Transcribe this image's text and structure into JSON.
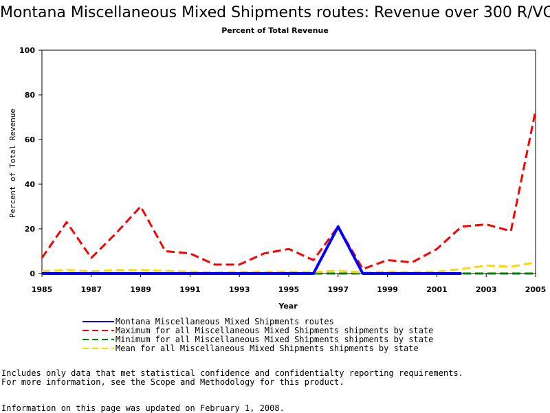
{
  "chart_data": {
    "type": "line",
    "title": "Montana Miscellaneous Mixed Shipments routes: Revenue over 300 R/VC",
    "subtitle": "Percent of Total Revenue",
    "xlabel": "Year",
    "ylabel": "Percent of Total Revenue",
    "xlim": [
      1985,
      2005
    ],
    "ylim": [
      0,
      100
    ],
    "x_ticks": [
      "1985",
      "1987",
      "1989",
      "1991",
      "1993",
      "1995",
      "1997",
      "1999",
      "2001",
      "2003",
      "2005"
    ],
    "y_ticks": [
      "0",
      "20",
      "40",
      "60",
      "80",
      "100"
    ],
    "grid": false,
    "legend_placement": "bottom",
    "series": [
      {
        "name": "Montana Miscellaneous Mixed Shipments routes",
        "color": "#0000ff",
        "style": "solid",
        "x": [
          1985,
          1986,
          1987,
          1988,
          1989,
          1990,
          1991,
          1992,
          1993,
          1994,
          1995,
          1996,
          1997,
          1998,
          1999,
          2000,
          2001,
          2002
        ],
        "y": [
          0,
          0,
          0,
          0,
          0,
          0,
          0,
          0,
          0,
          0,
          0,
          0,
          21,
          0,
          0,
          0,
          0,
          0
        ]
      },
      {
        "name": "Maximum for all Miscellaneous Mixed Shipments shipments by state",
        "color": "#ff0000",
        "style": "dashed",
        "x": [
          1985,
          1986,
          1987,
          1988,
          1989,
          1990,
          1991,
          1992,
          1993,
          1994,
          1995,
          1996,
          1997,
          1998,
          1999,
          2000,
          2001,
          2002,
          2003,
          2004,
          2005
        ],
        "y": [
          7,
          23,
          7,
          18,
          30,
          10,
          9,
          4,
          4,
          9,
          11,
          6,
          21,
          2,
          6,
          5,
          11,
          21,
          22,
          19,
          73
        ]
      },
      {
        "name": "Minimum for all Miscellaneous Mixed Shipments shipments by state",
        "color": "#008000",
        "style": "dashed",
        "x": [
          1985,
          1986,
          1987,
          1988,
          1989,
          1990,
          1991,
          1992,
          1993,
          1994,
          1995,
          1996,
          1997,
          1998,
          1999,
          2000,
          2001,
          2002,
          2003,
          2004,
          2005
        ],
        "y": [
          0,
          0,
          0,
          0,
          0,
          0,
          0,
          0,
          0,
          0,
          0,
          0,
          0,
          0,
          0,
          0,
          0,
          0,
          0,
          0,
          0
        ]
      },
      {
        "name": "Mean for all Miscellaneous Mixed Shipments shipments by state",
        "color": "#ffd700",
        "style": "dashed",
        "x": [
          1985,
          1986,
          1987,
          1988,
          1989,
          1990,
          1991,
          1992,
          1993,
          1994,
          1995,
          1996,
          1997,
          1998,
          1999,
          2000,
          2001,
          2002,
          2003,
          2004,
          2005
        ],
        "y": [
          1,
          1.5,
          1,
          1.5,
          1.5,
          1.2,
          0.8,
          0.5,
          0.7,
          0.8,
          0.8,
          0.6,
          1.3,
          0.4,
          0.8,
          0.6,
          0.8,
          2,
          3.5,
          3,
          5
        ]
      }
    ]
  },
  "notes": {
    "line1": "Includes only data that met statistical confidence and confidentialty reporting requirements.",
    "line2": "For more information, see the Scope and Methodology for this product.",
    "line3": "Information on this page was updated on February 1, 2008."
  }
}
